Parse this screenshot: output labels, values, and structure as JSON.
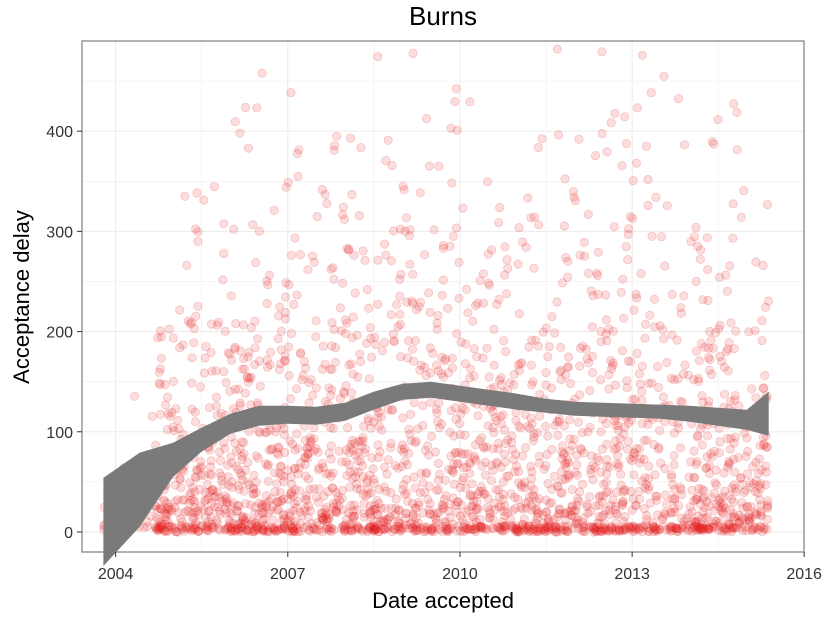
{
  "chart_data": {
    "type": "scatter",
    "title": "Burns",
    "xlabel": "Date accepted",
    "ylabel": "Acceptance delay",
    "x_axis": {
      "scale": "date",
      "range": [
        "2003-06-01",
        "2015-12-31"
      ],
      "ticks": [
        "2004",
        "2007",
        "2010",
        "2013",
        "2016"
      ]
    },
    "y_axis": {
      "range": [
        -20,
        490
      ],
      "ticks": [
        0,
        100,
        200,
        300,
        400
      ]
    },
    "grid": true,
    "legend": "none",
    "colors": {
      "points": "#e41a1c",
      "smooth_band": "#7a7a7a",
      "panel_border": "#7f7f7f",
      "grid": "#ebebeb"
    },
    "point_opacity": 0.15,
    "point_count_approx": 2500,
    "point_date_range": [
      "2003-10-15",
      "2015-05-20"
    ],
    "trend": {
      "name": "smoothed fit",
      "x": [
        "2003-10-15",
        "2004-06-01",
        "2005-01-01",
        "2005-07-01",
        "2006-01-01",
        "2006-07-01",
        "2007-01-01",
        "2007-07-01",
        "2008-01-01",
        "2008-07-01",
        "2009-01-01",
        "2009-07-01",
        "2010-01-01",
        "2010-07-01",
        "2011-01-01",
        "2011-07-01",
        "2012-01-01",
        "2012-07-01",
        "2013-01-01",
        "2013-07-01",
        "2014-01-01",
        "2014-07-01",
        "2015-01-01",
        "2015-05-20"
      ],
      "fit": [
        10,
        42,
        72,
        92,
        108,
        116,
        117,
        116,
        120,
        131,
        140,
        142,
        138,
        134,
        130,
        126,
        123,
        122,
        121,
        120,
        118,
        115,
        112,
        118
      ],
      "lower": [
        -34,
        5,
        55,
        80,
        98,
        106,
        108,
        107,
        111,
        122,
        132,
        134,
        130,
        126,
        122,
        119,
        116,
        115,
        114,
        113,
        110,
        106,
        102,
        96
      ],
      "upper": [
        54,
        79,
        89,
        104,
        118,
        126,
        126,
        125,
        129,
        140,
        148,
        150,
        146,
        142,
        138,
        133,
        130,
        129,
        128,
        127,
        126,
        124,
        122,
        140
      ]
    }
  }
}
